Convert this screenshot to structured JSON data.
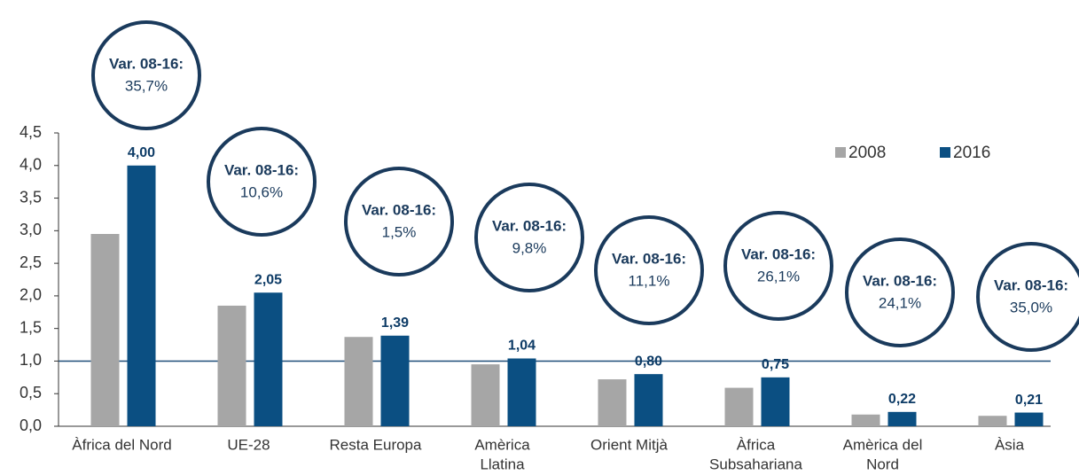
{
  "chart_data": {
    "type": "bar",
    "categories": [
      [
        "Àfrica del Nord"
      ],
      [
        "UE-28"
      ],
      [
        "Resta Europa"
      ],
      [
        "Amèrica",
        "Llatina"
      ],
      [
        "Orient Mitjà"
      ],
      [
        "Àfrica",
        "Subsahariana"
      ],
      [
        "Amèrica del",
        "Nord"
      ],
      [
        "Àsia"
      ]
    ],
    "series": [
      {
        "name": "2008",
        "color": "#a6a6a6",
        "values": [
          2.95,
          1.85,
          1.37,
          0.95,
          0.72,
          0.59,
          0.18,
          0.16
        ]
      },
      {
        "name": "2016",
        "color": "#0b4f82",
        "values": [
          4.0,
          2.05,
          1.39,
          1.04,
          0.8,
          0.75,
          0.22,
          0.21
        ],
        "value_labels": [
          "4,00",
          "2,05",
          "1,39",
          "1,04",
          "0,80",
          "0,75",
          "0,22",
          "0,21"
        ]
      }
    ],
    "annotations": [
      {
        "label": "Var. 08-16:",
        "text": "35,7%"
      },
      {
        "label": "Var. 08-16:",
        "text": "10,6%"
      },
      {
        "label": "Var. 08-16:",
        "text": "1,5%"
      },
      {
        "label": "Var. 08-16:",
        "text": "9,8%"
      },
      {
        "label": "Var. 08-16:",
        "text": "11,1%"
      },
      {
        "label": "Var. 08-16:",
        "text": "26,1%"
      },
      {
        "label": "Var. 08-16:",
        "text": "24,1%"
      },
      {
        "label": "Var. 08-16:",
        "text": "35,0%"
      }
    ],
    "reference_line": 1,
    "ylim": [
      0,
      4.5
    ],
    "yticks": [
      {
        "value": 0,
        "label": "0,0"
      },
      {
        "value": 0.5,
        "label": "0,5"
      },
      {
        "value": 1,
        "label": "1,0"
      },
      {
        "value": 1.5,
        "label": "1,5"
      },
      {
        "value": 2,
        "label": "2,0"
      },
      {
        "value": 2.5,
        "label": "2,5"
      },
      {
        "value": 3,
        "label": "3,0"
      },
      {
        "value": 3.5,
        "label": "3,5"
      },
      {
        "value": 4,
        "label": "4,0"
      },
      {
        "value": 4.5,
        "label": "4,5"
      }
    ],
    "legend": "top-right"
  }
}
